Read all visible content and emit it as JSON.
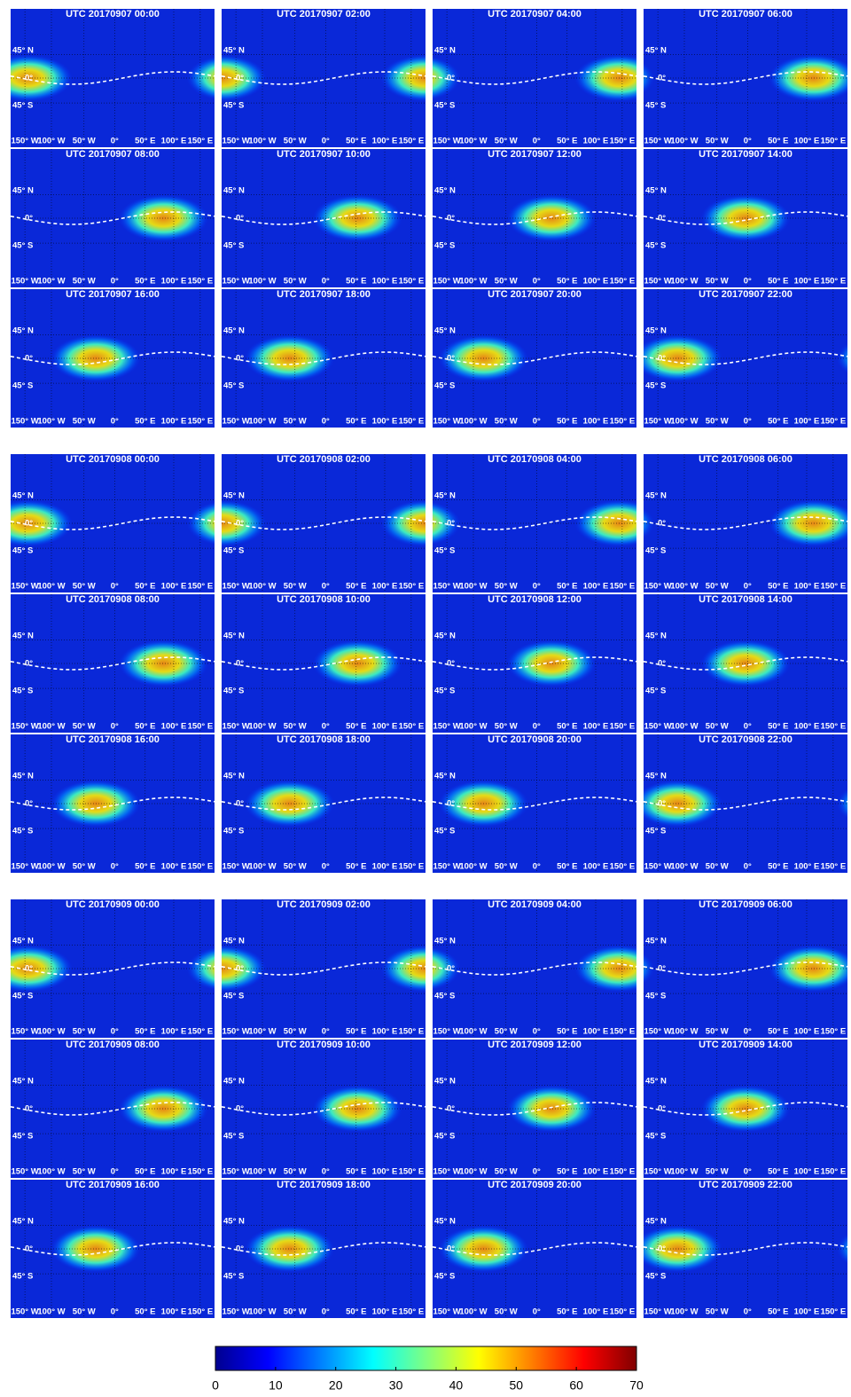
{
  "panels": [
    {
      "title": "UTC 20170907 00:00"
    },
    {
      "title": "UTC 20170907 02:00"
    },
    {
      "title": "UTC 20170907 04:00"
    },
    {
      "title": "UTC 20170907 06:00"
    },
    {
      "title": "UTC 20170907 08:00"
    },
    {
      "title": "UTC 20170907 10:00"
    },
    {
      "title": "UTC 20170907 12:00"
    },
    {
      "title": "UTC 20170907 14:00"
    },
    {
      "title": "UTC 20170907 16:00"
    },
    {
      "title": "UTC 20170907 18:00"
    },
    {
      "title": "UTC 20170907 20:00"
    },
    {
      "title": "UTC 20170907 22:00"
    },
    {
      "title": "UTC 20170908 00:00"
    },
    {
      "title": "UTC 20170908 02:00"
    },
    {
      "title": "UTC 20170908 04:00"
    },
    {
      "title": "UTC 20170908 06:00"
    },
    {
      "title": "UTC 20170908 08:00"
    },
    {
      "title": "UTC 20170908 10:00"
    },
    {
      "title": "UTC 20170908 12:00"
    },
    {
      "title": "UTC 20170908 14:00"
    },
    {
      "title": "UTC 20170908 16:00"
    },
    {
      "title": "UTC 20170908 18:00"
    },
    {
      "title": "UTC 20170908 20:00"
    },
    {
      "title": "UTC 20170908 22:00"
    },
    {
      "title": "UTC 20170909 00:00"
    },
    {
      "title": "UTC 20170909 02:00"
    },
    {
      "title": "UTC 20170909 04:00"
    },
    {
      "title": "UTC 20170909 06:00"
    },
    {
      "title": "UTC 20170909 08:00"
    },
    {
      "title": "UTC 20170909 10:00"
    },
    {
      "title": "UTC 20170909 12:00"
    },
    {
      "title": "UTC 20170909 14:00"
    },
    {
      "title": "UTC 20170909 16:00"
    },
    {
      "title": "UTC 20170909 18:00"
    },
    {
      "title": "UTC 20170909 20:00"
    },
    {
      "title": "UTC 20170909 22:00"
    }
  ],
  "lat_labels": [
    "45° N",
    "0°",
    "45° S"
  ],
  "lon_labels": [
    "150° W",
    "100° W",
    "50° W",
    "0°",
    "50° E",
    "100° E",
    "150° E"
  ],
  "colorbar": {
    "range": [
      0,
      70
    ],
    "ticks": [
      0,
      10,
      20,
      30,
      40,
      50,
      60,
      70
    ],
    "colormap": [
      "#00008f",
      "#0000ff",
      "#0080ff",
      "#00ffff",
      "#80ff80",
      "#ffff00",
      "#ff8000",
      "#ff0000",
      "#800000"
    ]
  }
}
